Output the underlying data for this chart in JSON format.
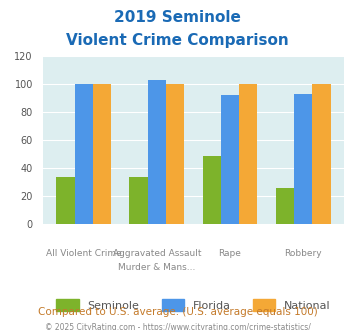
{
  "title_line1": "2019 Seminole",
  "title_line2": "Violent Crime Comparison",
  "categories": [
    "All Violent Crime",
    "Aggravated Assault\nMurder & Mans...",
    "Rape",
    "Robbery"
  ],
  "cat_labels_line1": [
    "",
    "Aggravated Assault",
    "",
    ""
  ],
  "cat_labels_line2": [
    "All Violent Crime",
    "Murder & Mans...",
    "Rape",
    "Robbery"
  ],
  "seminole": [
    34,
    34,
    49,
    26
  ],
  "florida": [
    100,
    103,
    92,
    93
  ],
  "national": [
    100,
    100,
    100,
    100
  ],
  "seminole_color": "#7db32b",
  "florida_color": "#4d96e8",
  "national_color": "#f4a836",
  "ylim": [
    0,
    120
  ],
  "yticks": [
    0,
    20,
    40,
    60,
    80,
    100,
    120
  ],
  "bg_color": "#ddeef0",
  "plot_bg": "#ddeef0",
  "footer_text": "Compared to U.S. average. (U.S. average equals 100)",
  "copyright_text": "© 2025 CityRating.com - https://www.cityrating.com/crime-statistics/",
  "legend_labels": [
    "Seminole",
    "Florida",
    "National"
  ],
  "bar_width": 0.25
}
